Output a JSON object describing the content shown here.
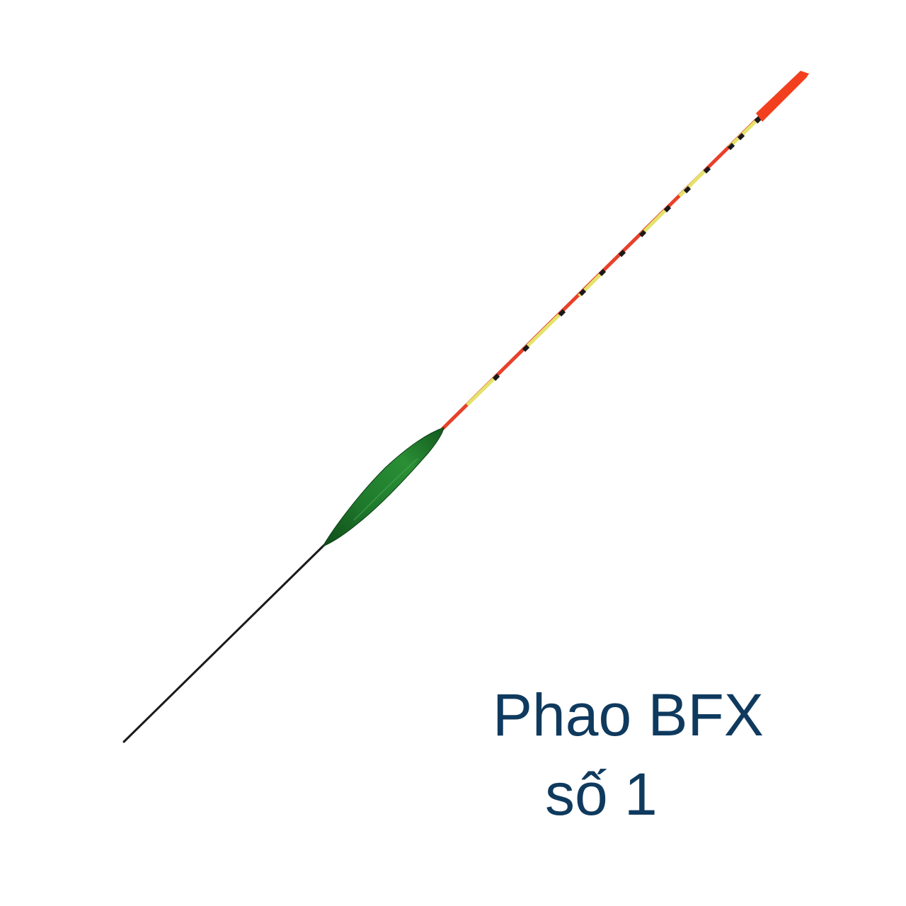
{
  "product": {
    "name_line1": "Phao BFX",
    "name_line2": "số 1"
  },
  "colors": {
    "background": "#ffffff",
    "caption_text": "#0f3a5e",
    "tip": "#f2401e",
    "antenna_red": "#e8402a",
    "antenna_yellow": "#e4e36a",
    "antenna_band": "#1a1a1a",
    "body_green": "#1f7a2c",
    "body_green_dark": "#0f4d1a",
    "stem": "#1a1a1a"
  }
}
